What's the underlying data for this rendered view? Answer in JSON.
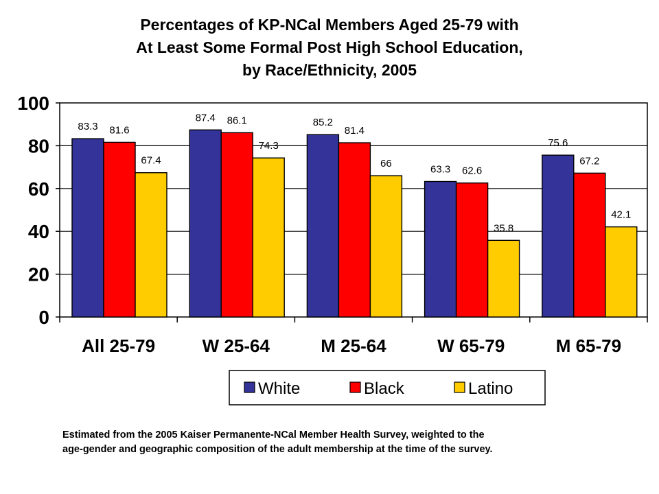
{
  "chart_data": {
    "type": "bar",
    "title_lines": [
      "Percentages of KP-NCal Members Aged 25-79 with",
      "At Least Some Formal Post High School Education,",
      "by Race/Ethnicity, 2005"
    ],
    "categories": [
      "All 25-79",
      "W 25-64",
      "M 25-64",
      "W 65-79",
      "M 65-79"
    ],
    "series": [
      {
        "name": "White",
        "color": "#333399",
        "values": [
          83.3,
          87.4,
          85.2,
          63.3,
          75.6
        ],
        "labels": [
          "83.3",
          "87.4",
          "85.2",
          "63.3",
          "75.6"
        ]
      },
      {
        "name": "Black",
        "color": "#FF0000",
        "values": [
          81.6,
          86.1,
          81.4,
          62.6,
          67.2
        ],
        "labels": [
          "81.6",
          "86.1",
          "81.4",
          "62.6",
          "67.2"
        ]
      },
      {
        "name": "Latino",
        "color": "#FFCC00",
        "values": [
          67.4,
          74.3,
          66,
          35.8,
          42.1
        ],
        "labels": [
          "67.4",
          "74.3",
          "66",
          "35.8",
          "42.1"
        ]
      }
    ],
    "y_ticks": [
      "0",
      "20",
      "40",
      "60",
      "80",
      "100"
    ],
    "ylim": [
      0,
      100
    ],
    "grid": true,
    "legend_position": "bottom",
    "xlabel": "",
    "ylabel": ""
  },
  "footnote": {
    "line1": "Estimated from the 2005 Kaiser Permanente-NCal Member Health Survey, weighted to the",
    "line2": "age-gender and geographic composition of the adult membership at the time of the survey."
  }
}
